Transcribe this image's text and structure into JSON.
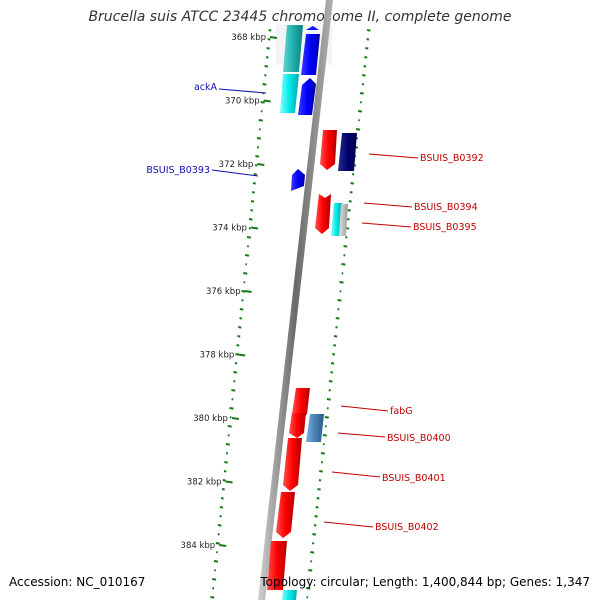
{
  "title": "Brucella suis ATCC 23445 chromosome II, complete genome",
  "footer": {
    "accession": "Accession: NC_010167",
    "stats": "Topology: circular; Length: 1,400,844 bp; Genes: 1,347"
  },
  "colors": {
    "backbone": "#8c8c8c",
    "gc_ticks": "#1a7a1a",
    "forward_label": "#1010b0",
    "reverse_label": "#c00000"
  },
  "scale": {
    "unit": "kbp",
    "ticks": [
      {
        "kbp": 368,
        "label": "368 kbp"
      },
      {
        "kbp": 370,
        "label": "370 kbp"
      },
      {
        "kbp": 372,
        "label": "372 kbp"
      },
      {
        "kbp": 374,
        "label": "374 kbp"
      },
      {
        "kbp": 376,
        "label": "376 kbp"
      },
      {
        "kbp": 378,
        "label": "378 kbp"
      },
      {
        "kbp": 380,
        "label": "380 kbp"
      },
      {
        "kbp": 382,
        "label": "382 kbp"
      },
      {
        "kbp": 384,
        "label": "384 kbp"
      }
    ]
  },
  "labels": {
    "forward": [
      {
        "name": "ackA"
      },
      {
        "name": "BSUIS_B0393"
      }
    ],
    "reverse": [
      {
        "name": "BSUIS_B0392"
      },
      {
        "name": "BSUIS_B0394"
      },
      {
        "name": "BSUIS_B0395"
      },
      {
        "name": "fabG"
      },
      {
        "name": "BSUIS_B0400"
      },
      {
        "name": "BSUIS_B0401"
      },
      {
        "name": "BSUIS_B0402"
      }
    ]
  }
}
